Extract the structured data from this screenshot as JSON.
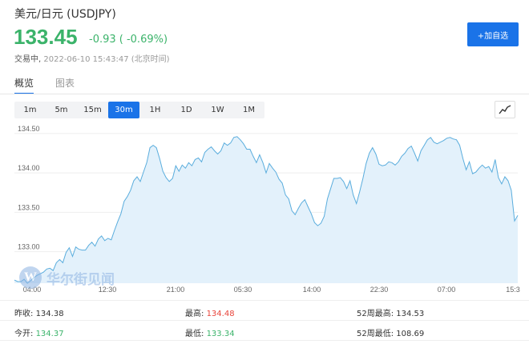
{
  "header": {
    "title": "美元/日元  (USDJPY)",
    "price": "133.45",
    "change": "-0.93 ( -0.69%)",
    "status": "交易中,",
    "timestamp": "2022-06-10 15:43:47 (北京时间)",
    "watch_button": "+加自选"
  },
  "tabs": [
    {
      "label": "概览",
      "active": true
    },
    {
      "label": "图表",
      "active": false
    }
  ],
  "periods": [
    {
      "label": "1m",
      "active": false
    },
    {
      "label": "5m",
      "active": false
    },
    {
      "label": "15m",
      "active": false
    },
    {
      "label": "30m",
      "active": true
    },
    {
      "label": "1H",
      "active": false
    },
    {
      "label": "1D",
      "active": false
    },
    {
      "label": "1W",
      "active": false
    },
    {
      "label": "1M",
      "active": false
    }
  ],
  "watermark": "华尔街见闻",
  "stats": {
    "prev_close_label": "昨收:",
    "prev_close": "134.38",
    "open_label": "今开:",
    "open": "134.37",
    "high_label": "最高:",
    "high": "134.48",
    "low_label": "最低:",
    "low": "133.34",
    "w52_high_label": "52周最高:",
    "w52_high": "134.53",
    "w52_low_label": "52周最低:",
    "w52_low": "108.69"
  },
  "colors": {
    "accent": "#1a73e8",
    "down": "#3bb36a",
    "up": "#e9453b",
    "line": "#5aaddd",
    "fill": "#e3f1fb"
  },
  "chart_data": {
    "type": "area",
    "y_ticks": [
      "134.50",
      "134.00",
      "133.50",
      "133.00"
    ],
    "x_ticks": [
      "04:00",
      "12:30",
      "21:00",
      "05:30",
      "14:00",
      "22:30",
      "07:00",
      "15:3"
    ],
    "ylim": [
      132.6,
      134.6
    ],
    "values": [
      132.64,
      132.62,
      132.62,
      132.65,
      132.6,
      132.63,
      132.67,
      132.7,
      132.72,
      132.74,
      132.78,
      132.79,
      132.76,
      132.86,
      132.9,
      132.86,
      132.99,
      133.05,
      132.94,
      133.06,
      133.03,
      133.02,
      133.02,
      133.08,
      133.12,
      133.07,
      133.16,
      133.2,
      133.14,
      133.17,
      133.15,
      133.27,
      133.38,
      133.48,
      133.64,
      133.7,
      133.78,
      133.9,
      133.95,
      133.89,
      134.01,
      134.13,
      134.32,
      134.35,
      134.32,
      134.18,
      134.02,
      133.94,
      133.89,
      133.93,
      134.09,
      134.02,
      134.1,
      134.06,
      134.13,
      134.09,
      134.17,
      134.19,
      134.14,
      134.26,
      134.3,
      134.33,
      134.28,
      134.24,
      134.28,
      134.38,
      134.35,
      134.38,
      134.45,
      134.46,
      134.42,
      134.37,
      134.3,
      134.3,
      134.21,
      134.13,
      134.23,
      134.13,
      134.0,
      134.12,
      134.06,
      134.01,
      133.92,
      133.87,
      133.72,
      133.67,
      133.52,
      133.47,
      133.55,
      133.62,
      133.66,
      133.57,
      133.48,
      133.37,
      133.33,
      133.36,
      133.45,
      133.67,
      133.8,
      133.93,
      133.93,
      133.94,
      133.89,
      133.8,
      133.9,
      133.72,
      133.61,
      133.76,
      133.93,
      134.12,
      134.25,
      134.32,
      134.24,
      134.11,
      134.09,
      134.1,
      134.14,
      134.13,
      134.1,
      134.14,
      134.21,
      134.25,
      134.31,
      134.34,
      134.25,
      134.15,
      134.28,
      134.35,
      134.42,
      134.45,
      134.39,
      134.37,
      134.39,
      134.41,
      134.44,
      134.45,
      134.43,
      134.42,
      134.35,
      134.18,
      134.04,
      134.14,
      133.99,
      134.01,
      134.06,
      134.1,
      134.06,
      134.08,
      134.01,
      134.17,
      133.94,
      133.86,
      133.95,
      133.9,
      133.78,
      133.39,
      133.46
    ]
  }
}
